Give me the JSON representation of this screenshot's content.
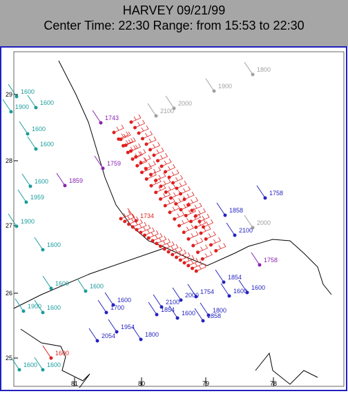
{
  "header": {
    "title": "HARVEY 09/21/99",
    "subtitle": "Center Time: 22:30  Range: from 15:53 to 22:30"
  },
  "axes": {
    "latitude_labels": [
      "29",
      "28",
      "27",
      "26",
      "25"
    ],
    "longitude_labels": [
      "81",
      "80",
      "79",
      "78"
    ]
  },
  "stations": [
    {
      "label": "1600",
      "color": "#1a9c9c"
    },
    {
      "label": "1900",
      "color": "#1a9c9c"
    },
    {
      "label": "1600",
      "color": "#1a9c9c"
    },
    {
      "label": "1600",
      "color": "#1a9c9c"
    },
    {
      "label": "1600",
      "color": "#1a9c9c"
    },
    {
      "label": "1600",
      "color": "#1a9c9c"
    },
    {
      "label": "1959",
      "color": "#1a9c9c"
    },
    {
      "label": "1900",
      "color": "#1a9c9c"
    },
    {
      "label": "1600",
      "color": "#1a9c9c"
    },
    {
      "label": "1600",
      "color": "#1a9c9c"
    },
    {
      "label": "1600",
      "color": "#1a9c9c"
    },
    {
      "label": "1900",
      "color": "#1a9c9c"
    },
    {
      "label": "1600",
      "color": "#1a9c9c"
    },
    {
      "label": "1600",
      "color": "#1a9c9c"
    },
    {
      "label": "1600",
      "color": "#1a9c9c"
    },
    {
      "label": "1800",
      "color": "#a0a0a0"
    },
    {
      "label": "1900",
      "color": "#a0a0a0"
    },
    {
      "label": "2000",
      "color": "#a0a0a0"
    },
    {
      "label": "2100",
      "color": "#a0a0a0"
    },
    {
      "label": "2000",
      "color": "#a0a0a0"
    },
    {
      "label": "1743",
      "color": "#8a22b0"
    },
    {
      "label": "1759",
      "color": "#8a22b0"
    },
    {
      "label": "1859",
      "color": "#8a22b0"
    },
    {
      "label": "1858",
      "color": "#2424c0"
    },
    {
      "label": "1758",
      "color": "#2424c0"
    },
    {
      "label": "2100",
      "color": "#2424c0"
    },
    {
      "label": "1758",
      "color": "#8a22b0"
    },
    {
      "label": "1600",
      "color": "#2424c0"
    },
    {
      "label": "1600",
      "color": "#2424c0"
    },
    {
      "label": "1700",
      "color": "#2424c0"
    },
    {
      "label": "2100",
      "color": "#2424c0"
    },
    {
      "label": "1854",
      "color": "#2424c0"
    },
    {
      "label": "1600",
      "color": "#2424c0"
    },
    {
      "label": "1858",
      "color": "#2424c0"
    },
    {
      "label": "1800",
      "color": "#2424c0"
    },
    {
      "label": "1954",
      "color": "#2424c0"
    },
    {
      "label": "1800",
      "color": "#2424c0"
    },
    {
      "label": "2054",
      "color": "#2424c0"
    },
    {
      "label": "1600",
      "color": "#2424c0"
    },
    {
      "label": "1854",
      "color": "#2424c0"
    },
    {
      "label": "1754",
      "color": "#2424c0"
    },
    {
      "label": "2000",
      "color": "#2424c0"
    },
    {
      "label": "1600",
      "color": "#e02020"
    },
    {
      "label": "1734",
      "color": "#e02020"
    }
  ]
}
